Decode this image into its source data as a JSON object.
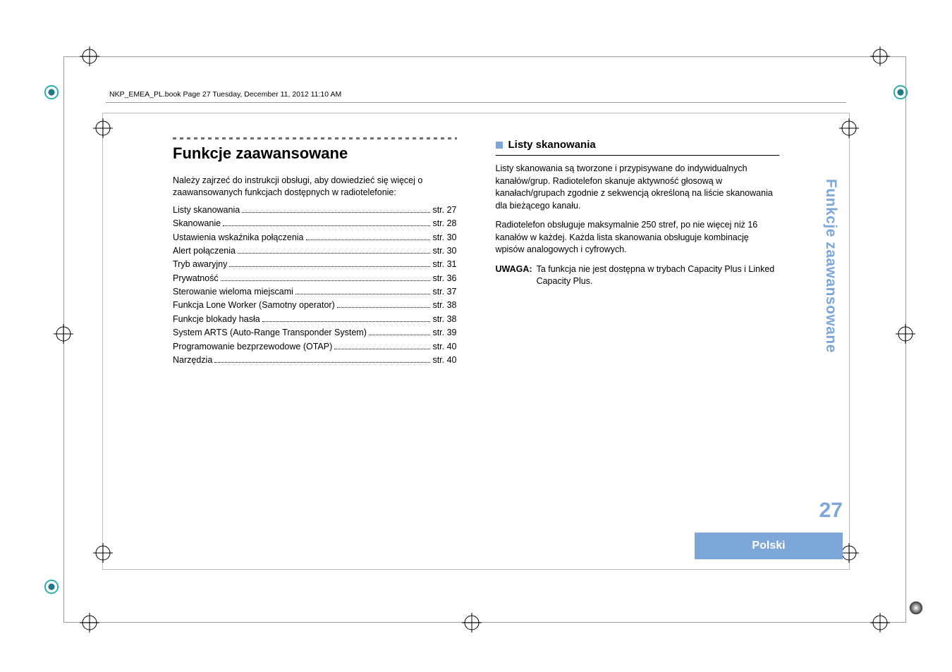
{
  "header": {
    "runhead": "NKP_EMEA_PL.book  Page 27  Tuesday, December 11, 2012  11:10 AM"
  },
  "left": {
    "title": "Funkcje zaawansowane",
    "intro": "Należy zajrzeć do instrukcji obsługi, aby dowiedzieć się więcej o zaawansowanych funkcjach dostępnych w radiotelefonie:",
    "toc": [
      {
        "label": "Listy skanowania",
        "page": "str. 27"
      },
      {
        "label": "Skanowanie",
        "page": "str. 28"
      },
      {
        "label": "Ustawienia wskaźnika połączenia",
        "page": "str. 30"
      },
      {
        "label": "Alert połączenia",
        "page": "str. 30"
      },
      {
        "label": "Tryb awaryjny",
        "page": "str. 31"
      },
      {
        "label": "Prywatność",
        "page": "str. 36"
      },
      {
        "label": "Sterowanie wieloma miejscami",
        "page": "str. 37"
      },
      {
        "label": "Funkcja Lone Worker (Samotny operator)",
        "page": "str. 38"
      },
      {
        "label": "Funkcje blokady hasła",
        "page": "str. 38"
      },
      {
        "label": "System ARTS (Auto-Range Transponder System)",
        "page": "str. 39"
      },
      {
        "label": "Programowanie bezprzewodowe (OTAP)",
        "page": "str. 40"
      },
      {
        "label": "Narzędzia",
        "page": "str. 40"
      }
    ]
  },
  "right": {
    "section_title": "Listy skanowania",
    "p1": "Listy skanowania są tworzone i przypisywane do indywidualnych kanałów/grup. Radiotelefon skanuje aktywność głosową w kanałach/grupach zgodnie z sekwencją określoną na liście skanowania dla bieżącego kanału.",
    "p2": "Radiotelefon obsługuje maksymalnie 250 stref, po nie więcej niż 16 kanałów w każdej. Każda lista skanowania obsługuje kombinację wpisów analogowych i cyfrowych.",
    "note_label": "UWAGA:",
    "note_body": "Ta funkcja nie jest dostępna w trybach Capacity Plus i Linked Capacity Plus."
  },
  "side": {
    "tab_text": "Funkcje zaawansowane",
    "page_number": "27",
    "language": "Polski"
  },
  "style": {
    "accent": "#7da7d9",
    "text": "#000000",
    "frame": "#999999",
    "title_fontsize": 22,
    "body_fontsize": 12.5,
    "section_fontsize": 15,
    "pagenum_fontsize": 30,
    "sidetab_fontsize": 21
  }
}
